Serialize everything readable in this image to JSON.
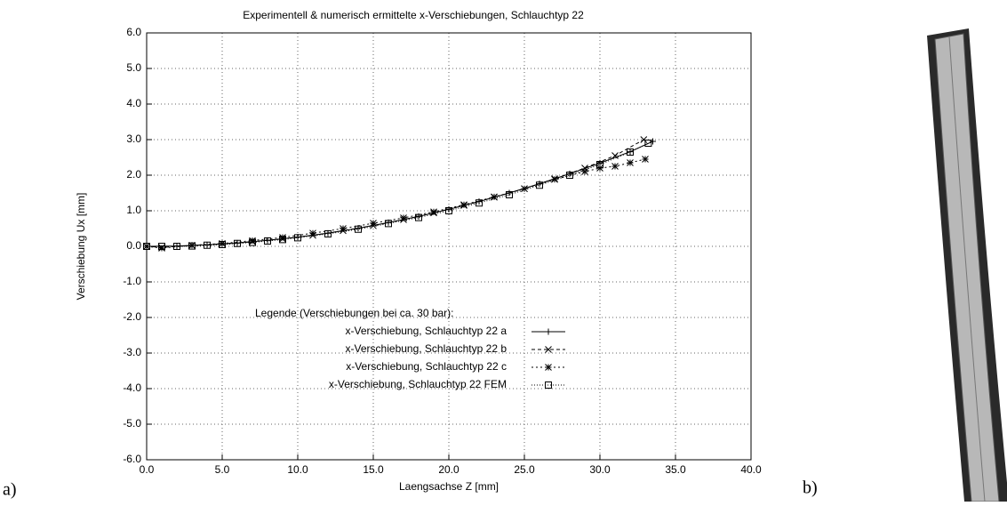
{
  "chart_data": {
    "type": "line",
    "title": "Experimentell & numerisch ermittelte x-Verschiebungen, Schlauchtyp 22",
    "x_label": "Laengsachse Z [mm]",
    "y_label": "Verschiebung Ux [mm]",
    "xlim": [
      0,
      40
    ],
    "ylim": [
      -6,
      6
    ],
    "xticks": [
      {
        "value": 0,
        "label": "0.0"
      },
      {
        "value": 5,
        "label": "5.0"
      },
      {
        "value": 10,
        "label": "10.0"
      },
      {
        "value": 15,
        "label": "15.0"
      },
      {
        "value": 20,
        "label": "20.0"
      },
      {
        "value": 25,
        "label": "25.0"
      },
      {
        "value": 30,
        "label": "30.0"
      },
      {
        "value": 35,
        "label": "35.0"
      },
      {
        "value": 40,
        "label": "40.0"
      }
    ],
    "yticks": [
      {
        "value": 6,
        "label": "6.0"
      },
      {
        "value": 5,
        "label": "5.0"
      },
      {
        "value": 4,
        "label": "4.0"
      },
      {
        "value": 3,
        "label": "3.0"
      },
      {
        "value": 2,
        "label": "2.0"
      },
      {
        "value": 1,
        "label": "1.0"
      },
      {
        "value": 0,
        "label": "0.0"
      },
      {
        "value": -1,
        "label": "-1.0"
      },
      {
        "value": -2,
        "label": "-2.0"
      },
      {
        "value": -3,
        "label": "-3.0"
      },
      {
        "value": -4,
        "label": "-4.0"
      },
      {
        "value": -5,
        "label": "-5.0"
      },
      {
        "value": -6,
        "label": "-6.0"
      }
    ],
    "grid": true,
    "legend_title": "Legende (Verschiebungen bei ca. 30 bar):",
    "series": [
      {
        "name": "x-Verschiebung, Schlauchtyp 22  a",
        "color": "#000000",
        "marker": "plus",
        "dash": "none",
        "x": [
          0,
          2,
          4,
          6,
          8,
          10,
          12,
          14,
          16,
          18,
          20,
          22,
          24,
          26,
          28,
          30,
          32,
          33.5
        ],
        "values": [
          0,
          0.01,
          0.04,
          0.09,
          0.17,
          0.26,
          0.37,
          0.51,
          0.67,
          0.84,
          1.04,
          1.26,
          1.5,
          1.76,
          2.04,
          2.34,
          2.66,
          2.95
        ]
      },
      {
        "name": "x-Verschiebung, Schlauchtyp 22  b",
        "color": "#000000",
        "marker": "cross",
        "dash": "4,3",
        "x": [
          0,
          1,
          3,
          5,
          7,
          9,
          11,
          13,
          15,
          17,
          19,
          21,
          23,
          25,
          27,
          29,
          31,
          32.9
        ],
        "values": [
          0,
          -0.03,
          0.02,
          0.07,
          0.13,
          0.21,
          0.31,
          0.44,
          0.58,
          0.75,
          0.94,
          1.15,
          1.38,
          1.62,
          1.9,
          2.2,
          2.55,
          3.0
        ]
      },
      {
        "name": "x-Verschiebung, Schlauchtyp 22  c",
        "color": "#000000",
        "marker": "star",
        "dash": "2,3",
        "x": [
          0,
          1,
          3,
          5,
          7,
          9,
          11,
          13,
          15,
          17,
          19,
          21,
          23,
          25,
          27,
          29,
          30,
          31,
          32,
          33
        ],
        "values": [
          0,
          -0.05,
          0.03,
          0.08,
          0.16,
          0.25,
          0.37,
          0.5,
          0.65,
          0.8,
          0.97,
          1.17,
          1.39,
          1.62,
          1.88,
          2.1,
          2.2,
          2.25,
          2.35,
          2.45
        ]
      },
      {
        "name": "x-Verschiebung, Schlauchtyp 22 FEM",
        "color": "#000000",
        "marker": "square",
        "dash": "1,2",
        "x": [
          0,
          1,
          2,
          3,
          4,
          5,
          6,
          7,
          8,
          9,
          10,
          12,
          14,
          16,
          18,
          20,
          22,
          24,
          26,
          28,
          30,
          32,
          33.2
        ],
        "values": [
          0,
          0,
          0,
          0.01,
          0.03,
          0.05,
          0.08,
          0.11,
          0.15,
          0.19,
          0.24,
          0.35,
          0.48,
          0.64,
          0.81,
          1.0,
          1.22,
          1.45,
          1.72,
          2.0,
          2.3,
          2.65,
          2.9
        ]
      }
    ]
  },
  "panel_labels": [
    "a)",
    "b)"
  ]
}
